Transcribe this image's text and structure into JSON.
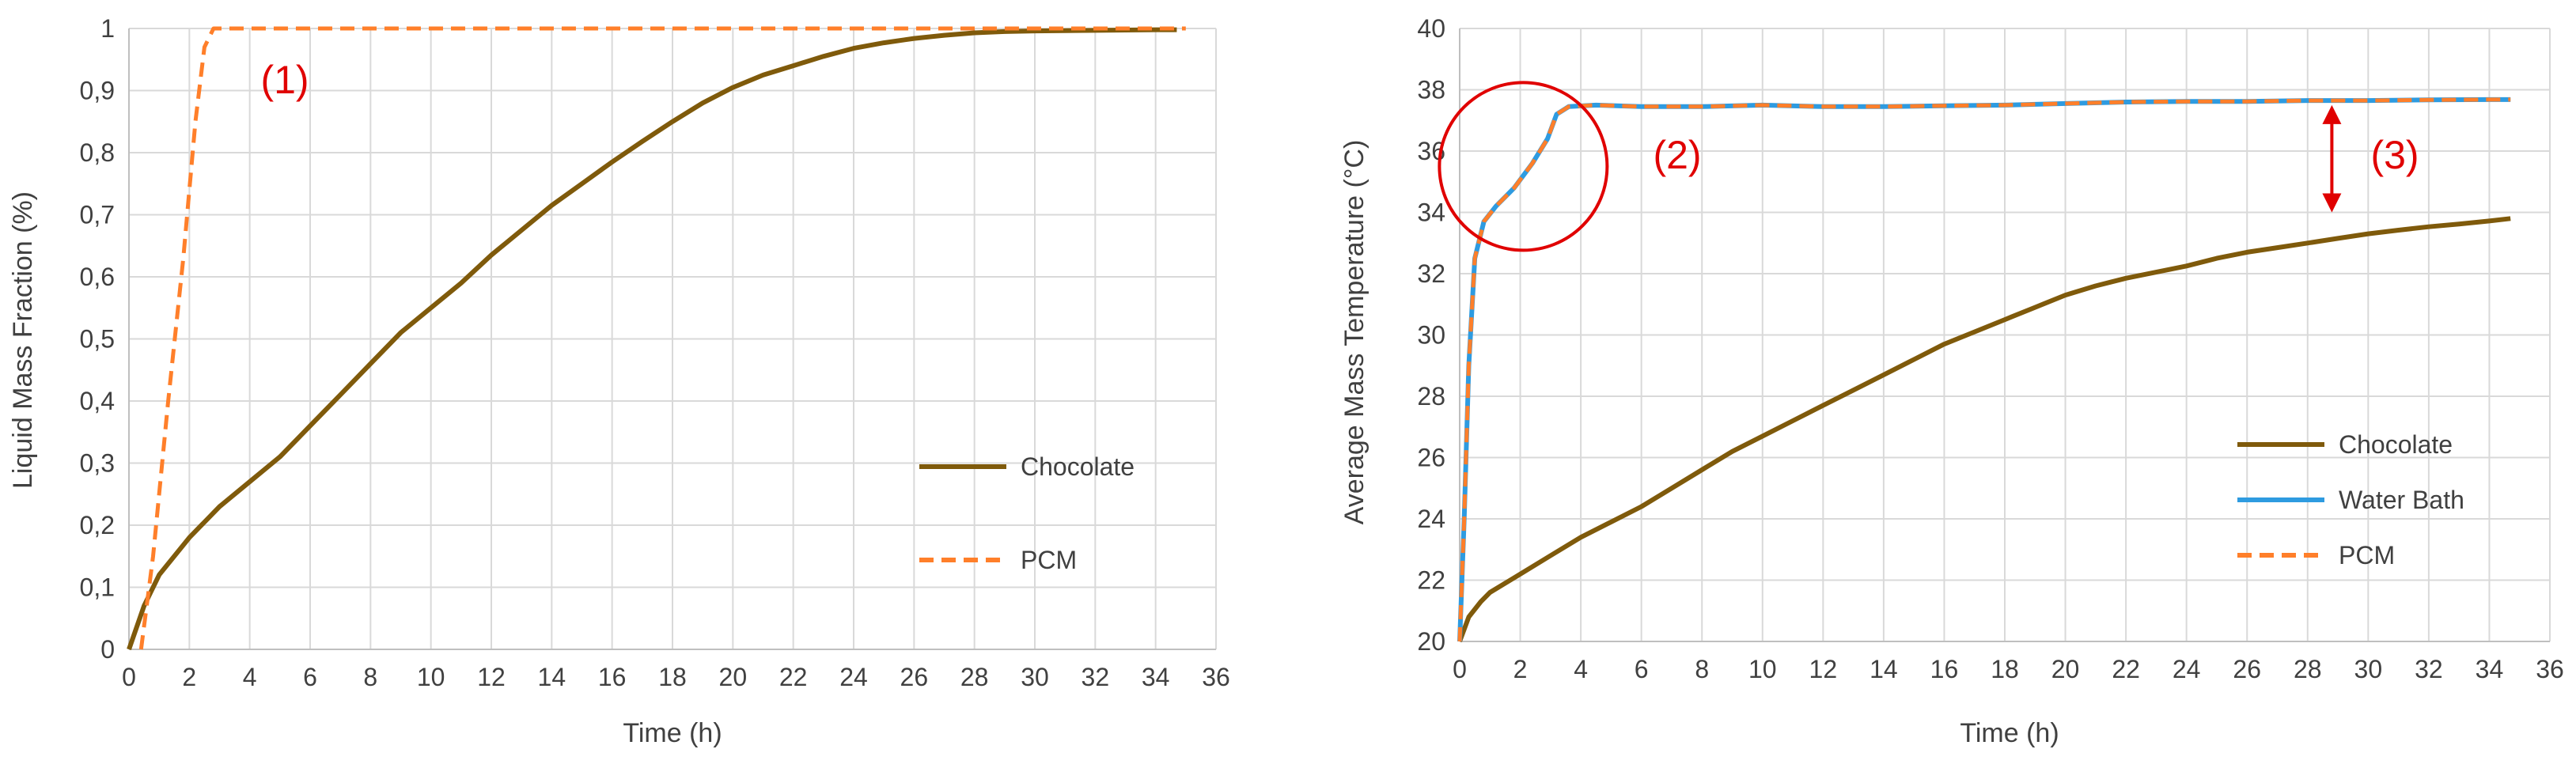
{
  "colors": {
    "chocolate": "#7f5a0b",
    "pcm": "#ff7f2a",
    "water": "#2e9be0",
    "grid": "#d9d9d9",
    "annotation": "#e00000"
  },
  "chart_data": [
    {
      "type": "line",
      "xlabel": "Time (h)",
      "ylabel": "Liquid Mass Fraction (%)",
      "xlim": [
        0,
        36
      ],
      "ylim": [
        0,
        1
      ],
      "x_ticks": [
        "0",
        "2",
        "4",
        "6",
        "8",
        "10",
        "12",
        "14",
        "16",
        "18",
        "20",
        "22",
        "24",
        "26",
        "28",
        "30",
        "32",
        "34",
        "36"
      ],
      "y_ticks": [
        "0",
        "0,1",
        "0,2",
        "0,3",
        "0,4",
        "0,5",
        "0,6",
        "0,7",
        "0,8",
        "0,9",
        "1"
      ],
      "grid": true,
      "legend_position": "right",
      "annotations": [
        {
          "text": "(1)",
          "x": 5.2,
          "y": 0.9
        }
      ],
      "series": [
        {
          "name": "Chocolate",
          "style": "solid",
          "color": "#7f5a0b",
          "points": [
            [
              0,
              0
            ],
            [
              0.5,
              0.07
            ],
            [
              1,
              0.12
            ],
            [
              2,
              0.18
            ],
            [
              3,
              0.23
            ],
            [
              4,
              0.27
            ],
            [
              5,
              0.31
            ],
            [
              6,
              0.36
            ],
            [
              7,
              0.41
            ],
            [
              8,
              0.46
            ],
            [
              9,
              0.51
            ],
            [
              10,
              0.55
            ],
            [
              11,
              0.59
            ],
            [
              12,
              0.635
            ],
            [
              13,
              0.675
            ],
            [
              14,
              0.715
            ],
            [
              15,
              0.75
            ],
            [
              16,
              0.785
            ],
            [
              17,
              0.818
            ],
            [
              18,
              0.85
            ],
            [
              19,
              0.88
            ],
            [
              20,
              0.905
            ],
            [
              21,
              0.925
            ],
            [
              22,
              0.94
            ],
            [
              23,
              0.955
            ],
            [
              24,
              0.968
            ],
            [
              25,
              0.977
            ],
            [
              26,
              0.984
            ],
            [
              27,
              0.989
            ],
            [
              28,
              0.993
            ],
            [
              29,
              0.995
            ],
            [
              30,
              0.996
            ],
            [
              32,
              0.997
            ],
            [
              34,
              0.998
            ],
            [
              34.7,
              0.998
            ]
          ]
        },
        {
          "name": "PCM",
          "style": "dashed",
          "color": "#ff7f2a",
          "points": [
            [
              0.4,
              0
            ],
            [
              0.8,
              0.15
            ],
            [
              1.3,
              0.4
            ],
            [
              1.8,
              0.63
            ],
            [
              2.2,
              0.85
            ],
            [
              2.5,
              0.97
            ],
            [
              2.8,
              1.0
            ],
            [
              35,
              1.0
            ]
          ]
        }
      ]
    },
    {
      "type": "line",
      "xlabel": "Time (h)",
      "ylabel": "Average Mass Temperature (°C)",
      "xlim": [
        0,
        36
      ],
      "ylim": [
        20,
        40
      ],
      "x_ticks": [
        "0",
        "2",
        "4",
        "6",
        "8",
        "10",
        "12",
        "14",
        "16",
        "18",
        "20",
        "22",
        "24",
        "26",
        "28",
        "30",
        "32",
        "34",
        "36"
      ],
      "y_ticks": [
        "20",
        "22",
        "24",
        "26",
        "28",
        "30",
        "32",
        "34",
        "36",
        "38",
        "40"
      ],
      "grid": true,
      "legend_position": "right",
      "annotations": [
        {
          "text": "(2)",
          "x": 7.9,
          "y": 35.9
        },
        {
          "text": "(3)",
          "x": 30.9,
          "y": 35.9
        }
      ],
      "series": [
        {
          "name": "Chocolate",
          "style": "solid",
          "color": "#7f5a0b",
          "points": [
            [
              0,
              20
            ],
            [
              0.3,
              20.8
            ],
            [
              0.7,
              21.3
            ],
            [
              1,
              21.6
            ],
            [
              2,
              22.2
            ],
            [
              3,
              22.8
            ],
            [
              4,
              23.4
            ],
            [
              5,
              23.9
            ],
            [
              6,
              24.4
            ],
            [
              7,
              25
            ],
            [
              8,
              25.6
            ],
            [
              9,
              26.2
            ],
            [
              10,
              26.7
            ],
            [
              11,
              27.2
            ],
            [
              12,
              27.7
            ],
            [
              13,
              28.2
            ],
            [
              14,
              28.7
            ],
            [
              15,
              29.2
            ],
            [
              16,
              29.7
            ],
            [
              17,
              30.1
            ],
            [
              18,
              30.5
            ],
            [
              19,
              30.9
            ],
            [
              20,
              31.3
            ],
            [
              21,
              31.6
            ],
            [
              22,
              31.85
            ],
            [
              23,
              32.05
            ],
            [
              24,
              32.25
            ],
            [
              25,
              32.5
            ],
            [
              26,
              32.7
            ],
            [
              27,
              32.85
            ],
            [
              28,
              33
            ],
            [
              29,
              33.15
            ],
            [
              30,
              33.3
            ],
            [
              31,
              33.42
            ],
            [
              32,
              33.53
            ],
            [
              33,
              33.62
            ],
            [
              34,
              33.72
            ],
            [
              34.7,
              33.8
            ]
          ]
        },
        {
          "name": "Water Bath",
          "style": "solid",
          "color": "#2e9be0",
          "points": [
            [
              0,
              20
            ],
            [
              0.15,
              24
            ],
            [
              0.3,
              29
            ],
            [
              0.5,
              32.5
            ],
            [
              0.8,
              33.7
            ],
            [
              1.2,
              34.2
            ],
            [
              1.8,
              34.8
            ],
            [
              2.4,
              35.6
            ],
            [
              2.9,
              36.4
            ],
            [
              3.2,
              37.2
            ],
            [
              3.6,
              37.45
            ],
            [
              4.5,
              37.5
            ],
            [
              6,
              37.45
            ],
            [
              7,
              37.45
            ],
            [
              8,
              37.45
            ],
            [
              10,
              37.5
            ],
            [
              12,
              37.45
            ],
            [
              14,
              37.45
            ],
            [
              16,
              37.48
            ],
            [
              18,
              37.5
            ],
            [
              20,
              37.55
            ],
            [
              22,
              37.6
            ],
            [
              24,
              37.62
            ],
            [
              26,
              37.62
            ],
            [
              28,
              37.65
            ],
            [
              30,
              37.65
            ],
            [
              32,
              37.67
            ],
            [
              34,
              37.68
            ],
            [
              34.7,
              37.68
            ]
          ]
        },
        {
          "name": "PCM",
          "style": "dashed",
          "color": "#ff7f2a",
          "points": [
            [
              0,
              20
            ],
            [
              0.15,
              24
            ],
            [
              0.3,
              29
            ],
            [
              0.5,
              32.5
            ],
            [
              0.8,
              33.7
            ],
            [
              1.2,
              34.2
            ],
            [
              1.8,
              34.8
            ],
            [
              2.4,
              35.6
            ],
            [
              2.9,
              36.4
            ],
            [
              3.2,
              37.2
            ],
            [
              3.6,
              37.45
            ],
            [
              4.5,
              37.5
            ],
            [
              6,
              37.45
            ],
            [
              7,
              37.45
            ],
            [
              8,
              37.45
            ],
            [
              10,
              37.5
            ],
            [
              12,
              37.45
            ],
            [
              14,
              37.45
            ],
            [
              16,
              37.48
            ],
            [
              18,
              37.5
            ],
            [
              20,
              37.55
            ],
            [
              22,
              37.6
            ],
            [
              24,
              37.62
            ],
            [
              26,
              37.62
            ],
            [
              28,
              37.65
            ],
            [
              30,
              37.65
            ],
            [
              32,
              37.67
            ],
            [
              34,
              37.68
            ],
            [
              34.7,
              37.68
            ]
          ]
        }
      ]
    }
  ]
}
